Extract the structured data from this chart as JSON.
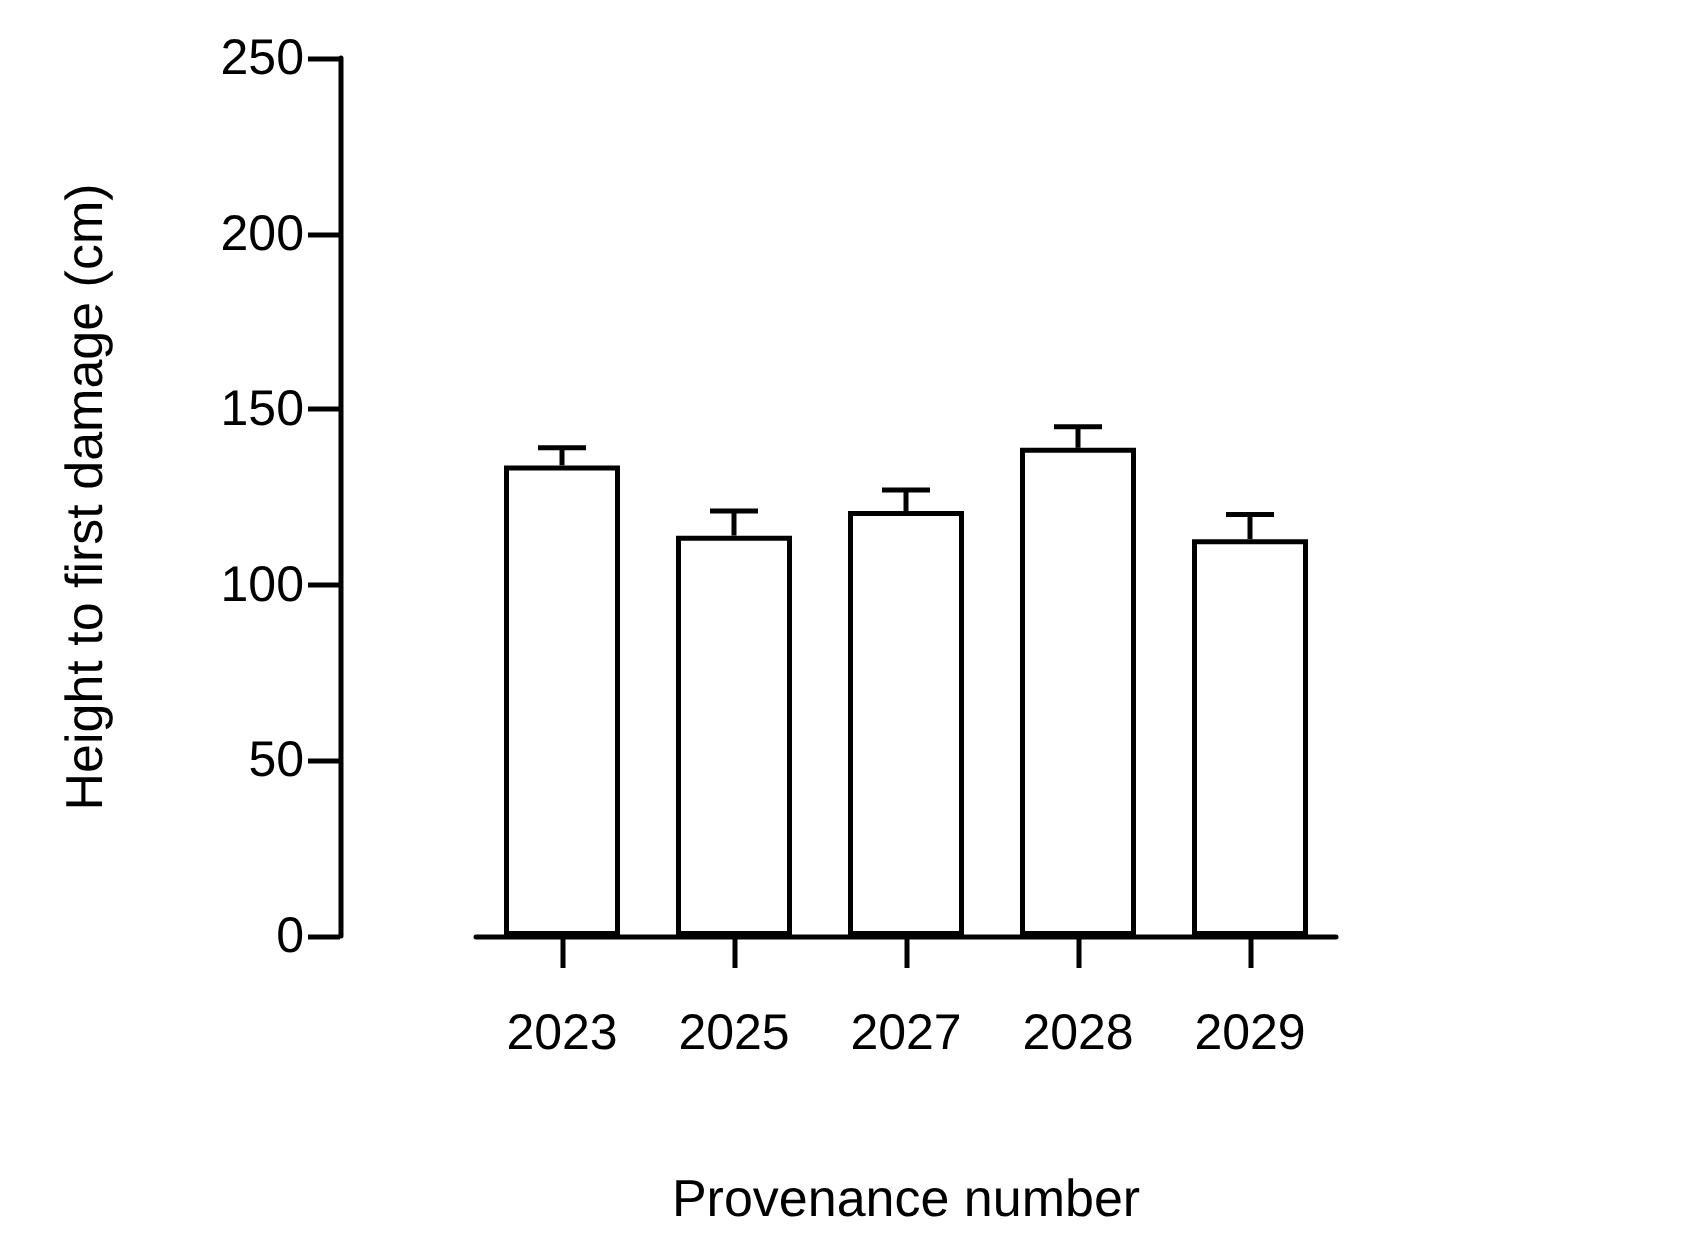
{
  "chart_data": {
    "type": "bar",
    "xlabel": "Provenance number",
    "ylabel": "Height to first damage (cm)",
    "categories": [
      "2023",
      "2025",
      "2027",
      "2028",
      "2029"
    ],
    "values": [
      134,
      114,
      121,
      139,
      113
    ],
    "errors": [
      [
        134,
        139
      ],
      [
        114,
        121
      ],
      [
        121,
        127
      ],
      [
        139,
        145
      ],
      [
        113,
        120
      ]
    ],
    "color": "#ffffff",
    "ylim": [
      0,
      250
    ],
    "yticks": [
      0,
      50,
      100,
      150,
      200,
      250
    ],
    "grid": false
  }
}
